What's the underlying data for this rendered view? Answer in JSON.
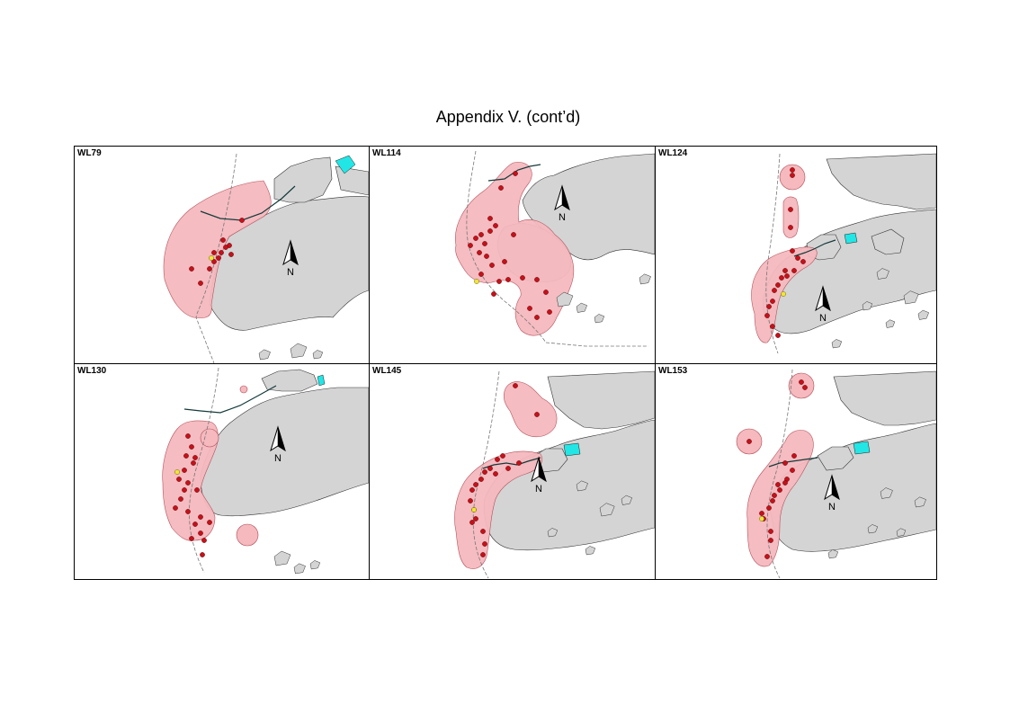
{
  "page": {
    "title": "Appendix V.  (cont’d)"
  },
  "colors": {
    "land": "#d4d4d4",
    "range": "#f5b9be",
    "range_outline": "#b04a55",
    "sighting": "#c8101a",
    "highlight_sighting": "#f2e636",
    "water_feature": "#22e6e6",
    "boundary_line": "#777777",
    "road": "#143a3a"
  },
  "legend": {
    "north_label": "N"
  },
  "panels": [
    {
      "id": "WL79",
      "label": "WL79"
    },
    {
      "id": "WL114",
      "label": "WL114"
    },
    {
      "id": "WL124",
      "label": "WL124"
    },
    {
      "id": "WL130",
      "label": "WL130"
    },
    {
      "id": "WL145",
      "label": "WL145"
    },
    {
      "id": "WL153",
      "label": "WL153"
    }
  ]
}
